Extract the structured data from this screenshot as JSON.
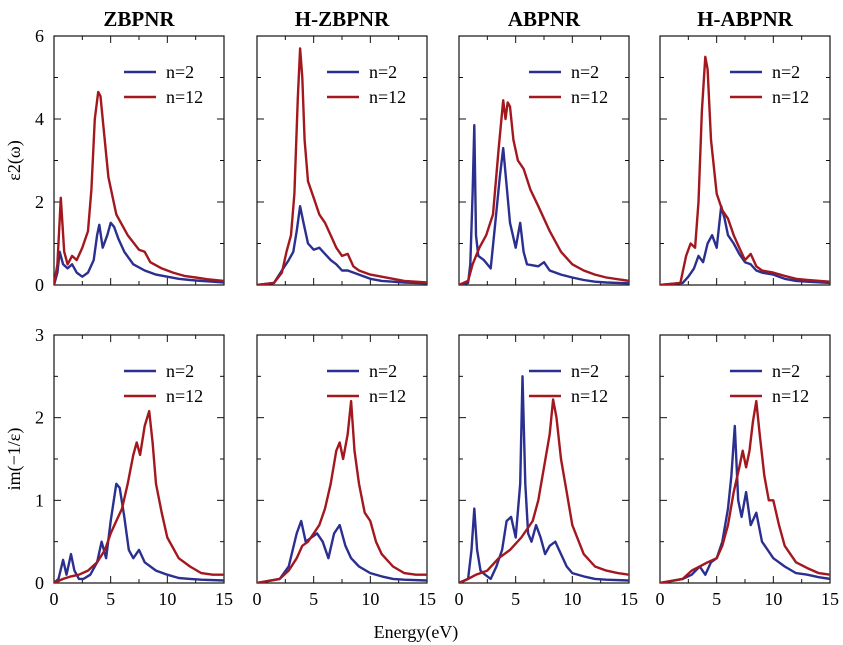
{
  "colors": {
    "n2": "#2b2f8f",
    "n12": "#a3181e"
  },
  "xlabel": "Energy(eV)",
  "chart_data": [
    {
      "type": "line",
      "title": "ZBPNR",
      "ylabel": "ε2(ω)",
      "xlim": [
        0,
        15
      ],
      "ylim": [
        0,
        6
      ],
      "xticks": [
        0,
        5,
        10,
        15
      ],
      "yticks": [
        0,
        2,
        4,
        6
      ],
      "series": [
        {
          "name": "n=2",
          "x": [
            0,
            0.3,
            0.5,
            0.8,
            1.2,
            1.6,
            2,
            2.5,
            3,
            3.5,
            3.8,
            4,
            4.3,
            4.7,
            5,
            5.3,
            5.7,
            6.2,
            7,
            8,
            9,
            10,
            11,
            12,
            13,
            14,
            15
          ],
          "y": [
            0,
            0.3,
            0.8,
            0.5,
            0.4,
            0.5,
            0.3,
            0.2,
            0.3,
            0.6,
            1.2,
            1.45,
            0.9,
            1.2,
            1.5,
            1.4,
            1.1,
            0.8,
            0.5,
            0.35,
            0.25,
            0.2,
            0.15,
            0.12,
            0.1,
            0.08,
            0.06
          ]
        },
        {
          "name": "n=12",
          "x": [
            0,
            0.3,
            0.6,
            0.9,
            1.2,
            1.6,
            2,
            2.5,
            3,
            3.3,
            3.6,
            3.9,
            4.1,
            4.4,
            4.8,
            5.5,
            6.5,
            7.5,
            8,
            8.5,
            9.5,
            10.5,
            11.5,
            12.5,
            13.5,
            15
          ],
          "y": [
            0,
            0.5,
            2.1,
            0.8,
            0.5,
            0.7,
            0.6,
            0.9,
            1.3,
            2.3,
            4.0,
            4.65,
            4.55,
            3.7,
            2.6,
            1.7,
            1.2,
            0.85,
            0.8,
            0.55,
            0.4,
            0.3,
            0.22,
            0.18,
            0.14,
            0.1
          ]
        }
      ]
    },
    {
      "type": "line",
      "title": "H-ZBPNR",
      "ylabel": "",
      "xlim": [
        0,
        15
      ],
      "ylim": [
        0,
        6
      ],
      "xticks": [
        0,
        5,
        10,
        15
      ],
      "yticks": [
        0,
        2,
        4,
        6
      ],
      "series": [
        {
          "name": "n=2",
          "x": [
            0,
            1.5,
            2.2,
            2.8,
            3.2,
            3.5,
            3.8,
            4.1,
            4.5,
            5,
            5.5,
            6,
            6.5,
            7,
            7.5,
            8,
            9,
            10,
            11,
            12,
            13,
            15
          ],
          "y": [
            0,
            0.05,
            0.35,
            0.6,
            0.8,
            1.3,
            1.9,
            1.5,
            1.0,
            0.85,
            0.9,
            0.75,
            0.6,
            0.5,
            0.35,
            0.35,
            0.25,
            0.15,
            0.1,
            0.08,
            0.06,
            0.04
          ]
        },
        {
          "name": "n=12",
          "x": [
            0,
            1.5,
            2.2,
            2.6,
            3,
            3.3,
            3.6,
            3.8,
            4,
            4.2,
            4.5,
            5,
            5.5,
            6,
            6.5,
            7,
            7.5,
            8,
            8.5,
            9,
            10,
            11,
            12,
            13,
            15
          ],
          "y": [
            0,
            0.05,
            0.3,
            0.8,
            1.2,
            2.2,
            4.5,
            5.7,
            5.0,
            3.5,
            2.5,
            2.1,
            1.7,
            1.5,
            1.2,
            0.9,
            0.7,
            0.75,
            0.45,
            0.35,
            0.25,
            0.2,
            0.15,
            0.1,
            0.06
          ]
        }
      ]
    },
    {
      "type": "line",
      "title": "ABPNR",
      "ylabel": "",
      "xlim": [
        0,
        15
      ],
      "ylim": [
        0,
        6
      ],
      "xticks": [
        0,
        5,
        10,
        15
      ],
      "yticks": [
        0,
        2,
        4,
        6
      ],
      "series": [
        {
          "name": "n=2",
          "x": [
            0,
            0.8,
            1.0,
            1.2,
            1.35,
            1.5,
            1.7,
            2.2,
            2.8,
            3.2,
            3.6,
            3.9,
            4.2,
            4.5,
            5,
            5.4,
            5.7,
            6,
            7,
            7.5,
            8,
            9,
            10,
            11,
            12,
            13,
            15
          ],
          "y": [
            0,
            0.05,
            0.5,
            2.2,
            3.85,
            1.2,
            0.7,
            0.6,
            0.4,
            1.5,
            2.6,
            3.3,
            2.4,
            1.5,
            0.9,
            1.5,
            0.8,
            0.5,
            0.45,
            0.55,
            0.35,
            0.25,
            0.18,
            0.12,
            0.08,
            0.06,
            0.04
          ]
        },
        {
          "name": "n=12",
          "x": [
            0,
            0.8,
            1.2,
            1.8,
            2.4,
            3,
            3.5,
            3.9,
            4.1,
            4.3,
            4.5,
            4.8,
            5.2,
            5.7,
            6.3,
            7,
            8,
            9,
            10,
            11,
            12,
            13,
            15
          ],
          "y": [
            0,
            0.1,
            0.5,
            0.9,
            1.2,
            1.7,
            3.3,
            4.45,
            4.0,
            4.4,
            4.3,
            3.5,
            3.0,
            2.8,
            2.3,
            1.9,
            1.3,
            0.8,
            0.5,
            0.35,
            0.25,
            0.18,
            0.1
          ]
        }
      ]
    },
    {
      "type": "line",
      "title": "H-ABPNR",
      "ylabel": "",
      "xlim": [
        0,
        15
      ],
      "ylim": [
        0,
        6
      ],
      "xticks": [
        0,
        5,
        10,
        15
      ],
      "yticks": [
        0,
        2,
        4,
        6
      ],
      "series": [
        {
          "name": "n=2",
          "x": [
            0,
            2,
            2.5,
            3,
            3.4,
            3.8,
            4.2,
            4.6,
            5,
            5.4,
            5.7,
            6,
            6.5,
            7,
            7.5,
            8,
            8.5,
            9,
            10,
            10.5,
            11,
            12,
            13,
            15
          ],
          "y": [
            0,
            0.05,
            0.2,
            0.4,
            0.7,
            0.55,
            1.0,
            1.2,
            0.9,
            1.9,
            1.6,
            1.2,
            1.0,
            0.75,
            0.55,
            0.5,
            0.35,
            0.3,
            0.25,
            0.2,
            0.15,
            0.1,
            0.08,
            0.05
          ]
        },
        {
          "name": "n=12",
          "x": [
            0,
            1.8,
            2.3,
            2.7,
            3.1,
            3.4,
            3.7,
            4.0,
            4.2,
            4.5,
            5,
            5.5,
            6,
            6.5,
            7,
            7.5,
            8,
            8.5,
            9,
            10,
            11,
            12,
            13,
            15
          ],
          "y": [
            0,
            0.05,
            0.7,
            1.0,
            0.9,
            2.0,
            4.2,
            5.5,
            5.2,
            3.5,
            2.2,
            1.8,
            1.6,
            1.2,
            0.9,
            0.6,
            0.75,
            0.45,
            0.35,
            0.3,
            0.22,
            0.15,
            0.12,
            0.08
          ]
        }
      ]
    },
    {
      "type": "line",
      "title": "",
      "ylabel": "im(−1/ε)",
      "xlim": [
        0,
        15
      ],
      "ylim": [
        0,
        3
      ],
      "xticks": [
        0,
        5,
        10,
        15
      ],
      "yticks": [
        0,
        1,
        2,
        3
      ],
      "series": [
        {
          "name": "n=2",
          "x": [
            0,
            0.4,
            0.8,
            1.1,
            1.5,
            1.8,
            2.2,
            2.6,
            3.2,
            3.8,
            4.2,
            4.6,
            5,
            5.5,
            5.8,
            6.2,
            6.6,
            7,
            7.5,
            8,
            9,
            10,
            11,
            12,
            13,
            15
          ],
          "y": [
            0,
            0.05,
            0.28,
            0.1,
            0.35,
            0.15,
            0.05,
            0.05,
            0.1,
            0.25,
            0.5,
            0.3,
            0.75,
            1.2,
            1.15,
            0.8,
            0.4,
            0.3,
            0.4,
            0.25,
            0.15,
            0.1,
            0.06,
            0.05,
            0.04,
            0.03
          ]
        },
        {
          "name": "n=12",
          "x": [
            0,
            0.8,
            1.5,
            2.2,
            3,
            3.8,
            4.5,
            5,
            5.5,
            6,
            6.5,
            7,
            7.3,
            7.6,
            8,
            8.4,
            8.7,
            9,
            9.5,
            10,
            11,
            12,
            13,
            14,
            15
          ],
          "y": [
            0,
            0.05,
            0.08,
            0.1,
            0.15,
            0.25,
            0.4,
            0.6,
            0.75,
            0.9,
            1.2,
            1.55,
            1.7,
            1.55,
            1.9,
            2.08,
            1.7,
            1.2,
            0.85,
            0.55,
            0.3,
            0.2,
            0.12,
            0.1,
            0.1
          ]
        }
      ]
    },
    {
      "type": "line",
      "title": "",
      "ylabel": "",
      "xlim": [
        0,
        15
      ],
      "ylim": [
        0,
        3
      ],
      "xticks": [
        0,
        5,
        10,
        15
      ],
      "yticks": [
        0,
        1,
        2,
        3
      ],
      "series": [
        {
          "name": "n=2",
          "x": [
            0,
            2,
            2.8,
            3.5,
            3.9,
            4.3,
            4.8,
            5.3,
            5.8,
            6.3,
            6.8,
            7.3,
            7.8,
            8.3,
            9,
            10,
            11,
            12,
            13,
            15
          ],
          "y": [
            0,
            0.05,
            0.2,
            0.6,
            0.75,
            0.5,
            0.55,
            0.6,
            0.5,
            0.3,
            0.6,
            0.7,
            0.45,
            0.3,
            0.2,
            0.12,
            0.08,
            0.05,
            0.04,
            0.03
          ]
        },
        {
          "name": "n=12",
          "x": [
            0,
            2,
            2.8,
            3.5,
            4,
            4.5,
            5,
            5.5,
            6,
            6.5,
            7,
            7.3,
            7.6,
            8,
            8.3,
            8.6,
            9,
            9.5,
            10,
            10.5,
            11,
            12,
            13,
            14,
            15
          ],
          "y": [
            0,
            0.05,
            0.15,
            0.3,
            0.45,
            0.5,
            0.6,
            0.7,
            0.9,
            1.2,
            1.6,
            1.7,
            1.5,
            1.8,
            2.2,
            1.6,
            1.2,
            0.85,
            0.75,
            0.5,
            0.35,
            0.2,
            0.12,
            0.1,
            0.1
          ]
        }
      ]
    },
    {
      "type": "line",
      "title": "",
      "ylabel": "",
      "xlim": [
        0,
        15
      ],
      "ylim": [
        0,
        3
      ],
      "xticks": [
        0,
        5,
        10,
        15
      ],
      "yticks": [
        0,
        1,
        2,
        3
      ],
      "series": [
        {
          "name": "n=2",
          "x": [
            0,
            0.8,
            1.1,
            1.35,
            1.6,
            1.9,
            2.3,
            2.8,
            3.3,
            3.8,
            4.2,
            4.6,
            5,
            5.4,
            5.6,
            5.85,
            6.1,
            6.4,
            6.8,
            7.2,
            7.6,
            8,
            8.5,
            9,
            9.5,
            10,
            11,
            12,
            13,
            15
          ],
          "y": [
            0,
            0.05,
            0.4,
            0.9,
            0.4,
            0.15,
            0.1,
            0.05,
            0.2,
            0.4,
            0.75,
            0.8,
            0.55,
            1.2,
            2.5,
            1.2,
            0.6,
            0.5,
            0.7,
            0.55,
            0.35,
            0.45,
            0.5,
            0.35,
            0.2,
            0.12,
            0.08,
            0.05,
            0.04,
            0.03
          ]
        },
        {
          "name": "n=12",
          "x": [
            0,
            0.8,
            1.5,
            2.5,
            3.5,
            4.5,
            5.5,
            6.5,
            7,
            7.5,
            8,
            8.3,
            8.6,
            9,
            9.5,
            10,
            11,
            12,
            13,
            14,
            15
          ],
          "y": [
            0,
            0.05,
            0.1,
            0.15,
            0.3,
            0.4,
            0.55,
            0.75,
            1.0,
            1.4,
            1.8,
            2.22,
            2.0,
            1.5,
            1.1,
            0.7,
            0.35,
            0.2,
            0.15,
            0.12,
            0.1
          ]
        }
      ]
    },
    {
      "type": "line",
      "title": "",
      "ylabel": "",
      "xlim": [
        0,
        15
      ],
      "ylim": [
        0,
        3
      ],
      "xticks": [
        0,
        5,
        10,
        15
      ],
      "yticks": [
        0,
        1,
        2,
        3
      ],
      "series": [
        {
          "name": "n=2",
          "x": [
            0,
            2,
            2.8,
            3.5,
            4,
            4.5,
            5,
            5.5,
            6,
            6.3,
            6.6,
            6.9,
            7.2,
            7.6,
            8,
            8.5,
            9,
            9.5,
            10,
            11,
            12,
            13,
            14,
            15
          ],
          "y": [
            0,
            0.05,
            0.1,
            0.2,
            0.1,
            0.25,
            0.3,
            0.5,
            0.9,
            1.3,
            1.9,
            1.0,
            0.8,
            1.1,
            0.7,
            0.85,
            0.5,
            0.4,
            0.3,
            0.2,
            0.12,
            0.1,
            0.07,
            0.05
          ]
        },
        {
          "name": "n=12",
          "x": [
            0,
            2,
            2.8,
            3.5,
            4.2,
            5,
            5.5,
            6,
            6.5,
            7,
            7.3,
            7.6,
            7.9,
            8.2,
            8.5,
            8.8,
            9.2,
            9.6,
            10,
            10.5,
            11,
            12,
            13,
            14,
            15
          ],
          "y": [
            0,
            0.05,
            0.15,
            0.2,
            0.25,
            0.3,
            0.45,
            0.7,
            1.1,
            1.4,
            1.6,
            1.4,
            1.6,
            1.95,
            2.2,
            1.8,
            1.3,
            1.0,
            1.0,
            0.7,
            0.45,
            0.25,
            0.18,
            0.12,
            0.1
          ]
        }
      ]
    }
  ]
}
